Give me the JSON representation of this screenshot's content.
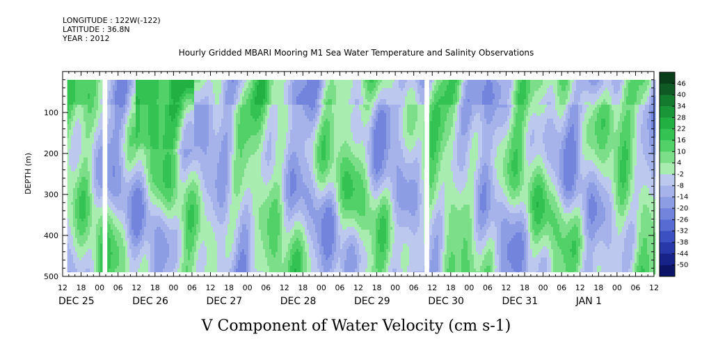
{
  "header": {
    "longitude": "LONGITUDE : 122W(-122)",
    "latitude": "LATITUDE : 36.8N",
    "year": "YEAR : 2012",
    "title": "Hourly Gridded MBARI Mooring M1 Sea Water Temperature and Salinity Observations"
  },
  "chart_data": {
    "type": "heatmap",
    "title": "Hourly Gridded MBARI Mooring M1 Sea Water Temperature and Salinity Observations",
    "xlabel": "V Component of Water Velocity (cm s-1)",
    "ylabel": "DEPTH (m)",
    "ylim": [
      500,
      0
    ],
    "y_ticks": [
      100,
      200,
      300,
      400,
      500
    ],
    "y_tick_labels": [
      "100",
      "200",
      "300",
      "400",
      "500"
    ],
    "data_depth_range": [
      20,
      490
    ],
    "x_range_hours": [
      -12,
      180
    ],
    "hour_ticks": [
      -12,
      -6,
      0,
      6,
      12,
      18,
      24,
      30,
      36,
      42,
      48,
      54,
      60,
      66,
      72,
      78,
      84,
      90,
      96,
      102,
      108,
      114,
      120,
      126,
      132,
      138,
      144,
      150,
      156,
      162,
      168,
      174,
      180
    ],
    "hour_tick_labels": [
      "12",
      "18",
      "00",
      "06",
      "12",
      "18",
      "00",
      "06",
      "12",
      "18",
      "00",
      "06",
      "12",
      "18",
      "00",
      "06",
      "12",
      "18",
      "00",
      "06",
      "12",
      "18",
      "00",
      "06",
      "12",
      "18",
      "00",
      "06",
      "12",
      "18",
      "00",
      "06",
      "12"
    ],
    "day_labels": [
      {
        "text": "DEC 25",
        "hour": -12
      },
      {
        "text": "DEC 26",
        "hour": 12
      },
      {
        "text": "DEC 27",
        "hour": 36
      },
      {
        "text": "DEC 28",
        "hour": 60
      },
      {
        "text": "DEC 29",
        "hour": 84
      },
      {
        "text": "DEC 30",
        "hour": 108
      },
      {
        "text": "DEC 31",
        "hour": 132
      },
      {
        "text": "JAN  1",
        "hour": 156
      }
    ],
    "colorbar": {
      "levels": [
        48,
        46,
        40,
        34,
        28,
        22,
        16,
        10,
        4,
        -2,
        -8,
        -14,
        -20,
        -26,
        -32,
        -38,
        -44,
        -50
      ],
      "labels": [
        "46",
        "40",
        "34",
        "28",
        "22",
        "16",
        "10",
        "4",
        "-2",
        "-8",
        "-14",
        "-20",
        "-26",
        "-32",
        "-38",
        "-44",
        "-50"
      ],
      "colors": [
        "#0a3d1a",
        "#0f5a24",
        "#137a2e",
        "#1a9638",
        "#22b043",
        "#34c252",
        "#52d168",
        "#7cde88",
        "#a8ecb0",
        "#bcc8ee",
        "#a6b3ea",
        "#8d9de4",
        "#7384dc",
        "#586bd2",
        "#3d50c2",
        "#2838a8",
        "#18238a",
        "#0c1466"
      ]
    },
    "missing_columns_hours": [
      [
        -12,
        -10.5
      ],
      [
        1,
        2.5
      ],
      [
        105.5,
        107
      ]
    ],
    "description_fields_value_range": [
      -26,
      24
    ]
  }
}
